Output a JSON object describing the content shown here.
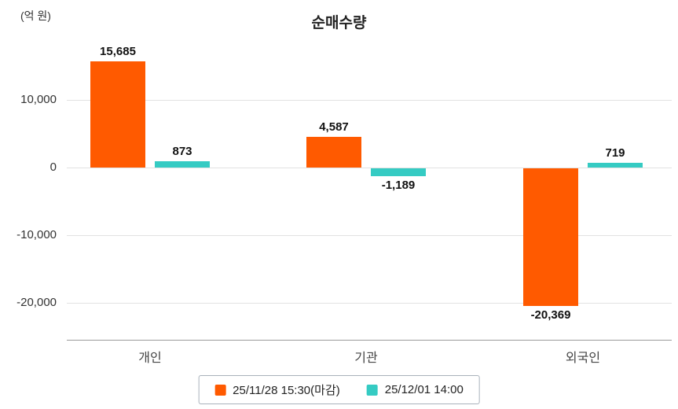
{
  "title": "순매수량",
  "unit_label": "(억 원)",
  "chart_data": {
    "type": "bar",
    "categories": [
      "개인",
      "기관",
      "외국인"
    ],
    "series": [
      {
        "name": "25/11/28 15:30(마감)",
        "color": "#ff5a00",
        "values": [
          15685,
          4587,
          -20369
        ],
        "labels": [
          "15,685",
          "4,587",
          "-20,369"
        ]
      },
      {
        "name": "25/12/01 14:00",
        "color": "#35cbc3",
        "values": [
          873,
          -1189,
          719
        ],
        "labels": [
          "873",
          "-1,189",
          "719"
        ]
      }
    ],
    "y_ticks": [
      10000,
      0,
      -10000,
      -20000
    ],
    "y_tick_labels": [
      "10,000",
      "0",
      "-10,000",
      "-20,000"
    ],
    "ylim": [
      -25500,
      20100
    ],
    "ylabel": "(억 원)",
    "grid": true,
    "legend_position": "bottom"
  }
}
